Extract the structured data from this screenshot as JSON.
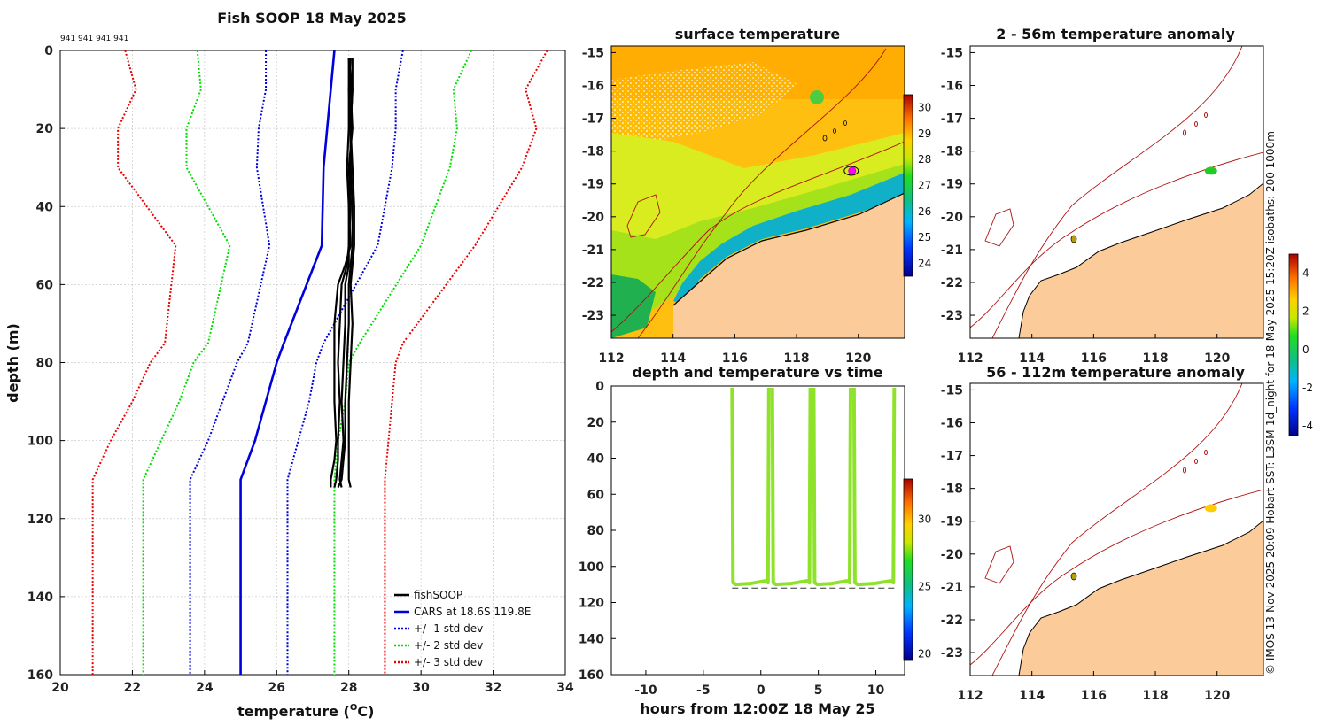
{
  "page_title": "Fish SOOP 18 May 2025",
  "chart_data": [
    {
      "id": "profile",
      "type": "line",
      "title": "Fish SOOP 18 May 2025",
      "subtitle": "941 941 941 941",
      "xlabel": "temperature (",
      "xlabel_sup": "O",
      "xlabel_unit": "C)",
      "ylabel": "depth (m)",
      "xlim": [
        20,
        34
      ],
      "ylim": [
        0,
        160
      ],
      "y_reversed": true,
      "xticks": [
        20,
        22,
        24,
        26,
        28,
        30,
        32,
        34
      ],
      "yticks": [
        0,
        20,
        40,
        60,
        80,
        100,
        120,
        140,
        160
      ],
      "grid": true,
      "legend_position": "bottom-right",
      "depth": [
        0,
        10,
        20,
        30,
        50,
        75,
        80,
        90,
        100,
        110,
        160
      ],
      "series": [
        {
          "name": "fishSOOP",
          "color": "#000000",
          "style": "solid",
          "depth": [
            2,
            10,
            20,
            30,
            40,
            50,
            55,
            60,
            70,
            80,
            90,
            100,
            105,
            110,
            112
          ],
          "profiles": [
            [
              28.0,
              28.0,
              28.0,
              27.95,
              28.0,
              28.05,
              27.9,
              27.7,
              27.6,
              27.6,
              27.6,
              27.65,
              27.6,
              27.5,
              27.5
            ],
            [
              28.1,
              28.1,
              28.05,
              28.05,
              28.1,
              28.1,
              28.05,
              28.0,
              28.0,
              27.95,
              27.9,
              27.9,
              27.85,
              27.8,
              27.7
            ],
            [
              28.0,
              28.05,
              28.1,
              28.0,
              28.05,
              28.0,
              27.95,
              27.8,
              27.75,
              27.7,
              27.75,
              27.7,
              27.7,
              27.65,
              27.6
            ],
            [
              28.05,
              28.0,
              28.05,
              28.1,
              28.15,
              28.15,
              28.1,
              28.05,
              28.1,
              28.05,
              28.0,
              28.0,
              28.0,
              28.0,
              28.05
            ],
            [
              28.0,
              28.1,
              28.05,
              28.05,
              28.0,
              28.0,
              28.0,
              27.9,
              27.9,
              27.85,
              27.8,
              27.85,
              27.8,
              27.75,
              27.8
            ]
          ]
        },
        {
          "name": "CARS at 18.6S 119.8E",
          "color": "#0000dd",
          "style": "solid",
          "values": [
            27.6,
            27.5,
            27.4,
            27.3,
            27.25,
            26.2,
            26.0,
            25.7,
            25.4,
            25.0,
            25.0
          ]
        },
        {
          "name": "+/- 1 std dev",
          "color": "#0000dd",
          "style": "dotted",
          "values_low": [
            25.7,
            25.7,
            25.5,
            25.45,
            25.8,
            25.2,
            24.9,
            24.5,
            24.1,
            23.6,
            23.6
          ],
          "values_high": [
            29.5,
            29.3,
            29.3,
            29.2,
            28.8,
            27.3,
            27.1,
            26.9,
            26.6,
            26.3,
            26.3
          ]
        },
        {
          "name": "+/- 2 std dev",
          "color": "#00dd00",
          "style": "dotted",
          "values_low": [
            23.8,
            23.9,
            23.5,
            23.5,
            24.7,
            24.1,
            23.7,
            23.3,
            22.8,
            22.3,
            22.3
          ],
          "values_high": [
            31.4,
            30.9,
            31.0,
            30.8,
            30.0,
            28.3,
            28.0,
            27.9,
            27.7,
            27.6,
            27.6
          ]
        },
        {
          "name": "+/- 3 std dev",
          "color": "#ee0000",
          "style": "dotted",
          "values_low": [
            21.8,
            22.1,
            21.6,
            21.6,
            23.2,
            22.9,
            22.5,
            22.0,
            21.4,
            20.9,
            20.9
          ],
          "values_high": [
            33.5,
            32.9,
            33.2,
            32.8,
            31.5,
            29.5,
            29.3,
            29.2,
            29.1,
            29.0,
            29.0
          ]
        }
      ]
    },
    {
      "id": "sst_map",
      "type": "heatmap",
      "title": "surface temperature",
      "xlim": [
        112,
        121.5
      ],
      "ylim": [
        -23.7,
        -14.8
      ],
      "xticks": [
        "112",
        "114",
        "116",
        "118",
        "120"
      ],
      "yticks": [
        "-15",
        "-16",
        "-17",
        "-18",
        "-19",
        "-20",
        "-21",
        "-22",
        "-23"
      ],
      "colorbar_ticks": [
        "30",
        "29",
        "28",
        "27",
        "26",
        "25",
        "24"
      ],
      "colorbar_range": [
        23.5,
        30.5
      ],
      "marker_position": {
        "lon": 119.8,
        "lat": -18.6
      },
      "land_color": "#fbcb9a"
    },
    {
      "id": "depth_time",
      "type": "scatter",
      "title": "depth and temperature vs time",
      "xlabel": "hours from 12:00Z 18 May 25",
      "xlim": [
        -13,
        12.5
      ],
      "ylim": [
        0,
        160
      ],
      "y_reversed": true,
      "xticks": [
        "-10",
        "-5",
        "0",
        "5",
        "10"
      ],
      "yticks": [
        "0",
        "20",
        "40",
        "60",
        "80",
        "100",
        "120",
        "140",
        "160"
      ],
      "colorbar_ticks": [
        "30",
        "25",
        "20"
      ],
      "colorbar_range": [
        19.5,
        33
      ],
      "bottom_depth": 112,
      "casts": [
        {
          "down": -2.5,
          "up": 0.7
        },
        {
          "down": 1.0,
          "up": 4.3
        },
        {
          "down": 4.6,
          "up": 7.8
        },
        {
          "down": 8.1,
          "up": 11.6
        }
      ],
      "cast_temperature": 28
    },
    {
      "id": "anom_upper",
      "type": "scatter",
      "title": "2 - 56m temperature anomaly",
      "xlim": [
        112,
        121.5
      ],
      "ylim": [
        -23.7,
        -14.8
      ],
      "xticks": [
        "112",
        "114",
        "116",
        "118",
        "120"
      ],
      "yticks": [
        "-15",
        "-16",
        "-17",
        "-18",
        "-19",
        "-20",
        "-21",
        "-22",
        "-23"
      ],
      "point": {
        "lon": 119.8,
        "lat": -18.6,
        "anomaly": 0.2,
        "color": "#22cc22"
      }
    },
    {
      "id": "anom_lower",
      "type": "scatter",
      "title": "56 - 112m temperature anomaly",
      "xlim": [
        112,
        121.5
      ],
      "ylim": [
        -23.7,
        -14.8
      ],
      "xticks": [
        "112",
        "114",
        "116",
        "118",
        "120"
      ],
      "yticks": [
        "-15",
        "-16",
        "-17",
        "-18",
        "-19",
        "-20",
        "-21",
        "-22",
        "-23"
      ],
      "point": {
        "lon": 119.8,
        "lat": -18.6,
        "anomaly": 2.2,
        "color": "#ffcc00"
      }
    },
    {
      "id": "anom_colorbar",
      "type": "heatmap",
      "colorbar_ticks": [
        "4",
        "2",
        "0",
        "-2",
        "-4"
      ],
      "colorbar_range": [
        -4.5,
        5
      ]
    }
  ],
  "side_note": "© IMOS 13-Nov-2025 20:09 Hobart SST: L3SM-1d_night for 18-May-2025 15:20Z isobaths: 200  1000m"
}
